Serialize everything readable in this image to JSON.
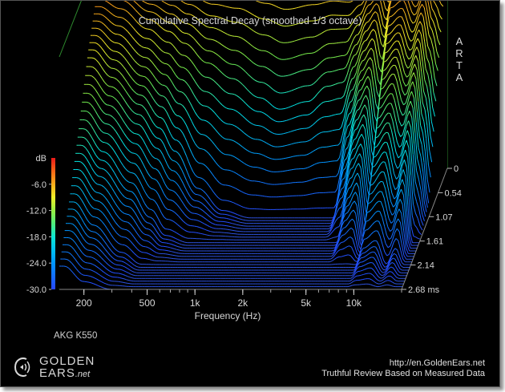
{
  "chart_data": {
    "type": "waterfall",
    "title": "Cumulative Spectral Decay (smoothed 1/3 octave)",
    "xlabel": "Frequency (Hz)",
    "x_ticks": [
      "200",
      "500",
      "1k",
      "2k",
      "5k",
      "10k"
    ],
    "x_tick_values": [
      200,
      500,
      1000,
      2000,
      5000,
      10000
    ],
    "xlim": [
      140,
      20000
    ],
    "x_scale": "log",
    "z_label": "dB",
    "z_ticks": [
      "-6.0",
      "-12.0",
      "-18.0",
      "-24.0",
      "-30.0"
    ],
    "zlim": [
      -30,
      0
    ],
    "time_ticks": [
      "0",
      "0.54",
      "1.07",
      "1.61",
      "2.14",
      "2.68 ms"
    ],
    "time_values": [
      0,
      0.54,
      1.07,
      1.61,
      2.14,
      2.68
    ],
    "slices": 45,
    "series": [
      {
        "time_ms": 0,
        "freq_hz": [
          150,
          200,
          300,
          400,
          500,
          700,
          1000,
          1500,
          2000,
          3000,
          4000,
          5000,
          6000,
          7000,
          8000,
          9000,
          10000,
          12000,
          14000,
          16000,
          18000,
          20000
        ],
        "db": [
          -2.5,
          -2.2,
          -2.0,
          -2.3,
          -2.6,
          -2.8,
          -2.1,
          -2.6,
          -3.0,
          -2.6,
          -2.9,
          -3.4,
          -3.8,
          -2.2,
          -1.5,
          -4.0,
          -0.8,
          -0.5,
          -1.8,
          -0.6,
          -3.0,
          -2.5
        ]
      },
      {
        "time_ms": 0.54,
        "freq_hz": [
          150,
          200,
          300,
          400,
          500,
          700,
          1000,
          1500,
          2000,
          3000,
          4000,
          5000,
          6000,
          7000,
          8000,
          9000,
          10000,
          12000,
          14000,
          16000,
          18000,
          20000
        ],
        "db": [
          -4.0,
          -5.0,
          -7.5,
          -9.0,
          -10.5,
          -13.0,
          -15.0,
          -17.5,
          -19.0,
          -18.0,
          -16.0,
          -15.5,
          -12.0,
          -9.0,
          -7.5,
          -11.0,
          -6.0,
          -5.0,
          -8.0,
          -5.5,
          -10.0,
          -14.0
        ]
      },
      {
        "time_ms": 1.07,
        "freq_hz": [
          150,
          200,
          300,
          400,
          500,
          700,
          1000,
          1500,
          2000,
          3000,
          4000,
          5000,
          6000,
          7000,
          8000,
          9000,
          10000,
          12000,
          14000,
          16000,
          18000,
          20000
        ],
        "db": [
          -9.0,
          -11.5,
          -15.0,
          -18.0,
          -21.0,
          -26.0,
          -29.0,
          -30.0,
          -30.0,
          -30.0,
          -30.0,
          -30.0,
          -22.0,
          -17.0,
          -15.0,
          -22.0,
          -13.0,
          -11.0,
          -15.0,
          -12.0,
          -20.0,
          -28.0
        ]
      },
      {
        "time_ms": 1.61,
        "freq_hz": [
          150,
          200,
          300,
          400,
          500,
          700,
          1000,
          1500,
          2000,
          3000,
          4000,
          5000,
          6000,
          7000,
          8000,
          9000,
          10000,
          12000,
          14000,
          16000,
          18000,
          20000
        ],
        "db": [
          -16.0,
          -19.0,
          -23.0,
          -26.5,
          -29.0,
          -30.0,
          -30.0,
          -30.0,
          -30.0,
          -30.0,
          -30.0,
          -30.0,
          -30.0,
          -25.0,
          -23.0,
          -30.0,
          -21.0,
          -19.0,
          -24.0,
          -20.0,
          -30.0,
          -30.0
        ]
      },
      {
        "time_ms": 2.14,
        "freq_hz": [
          150,
          200,
          300,
          400,
          500,
          700,
          1000,
          1500,
          2000,
          3000,
          4000,
          5000,
          6000,
          7000,
          8000,
          9000,
          10000,
          12000,
          14000,
          16000,
          18000,
          20000
        ],
        "db": [
          -22.0,
          -25.0,
          -28.5,
          -30.0,
          -30.0,
          -30.0,
          -30.0,
          -30.0,
          -30.0,
          -30.0,
          -30.0,
          -30.0,
          -30.0,
          -30.0,
          -30.0,
          -30.0,
          -28.0,
          -27.0,
          -30.0,
          -28.0,
          -30.0,
          -30.0
        ]
      },
      {
        "time_ms": 2.68,
        "freq_hz": [
          150,
          200,
          300,
          400,
          500,
          700,
          1000,
          1500,
          2000,
          3000,
          4000,
          5000,
          6000,
          7000,
          8000,
          9000,
          10000,
          12000,
          14000,
          16000,
          18000,
          20000
        ],
        "db": [
          -27.0,
          -29.0,
          -30.0,
          -30.0,
          -30.0,
          -30.0,
          -30.0,
          -30.0,
          -30.0,
          -30.0,
          -30.0,
          -30.0,
          -30.0,
          -30.0,
          -30.0,
          -30.0,
          -30.0,
          -30.0,
          -30.0,
          -30.0,
          -30.0,
          -30.0
        ]
      }
    ]
  },
  "watermark_brand": "ARTA",
  "model_label": "AKG K550",
  "footer": {
    "brand_line1": "GOLDEN",
    "brand_line2": "EARS",
    "brand_suffix": ".net",
    "url": "http://en.GoldenEars.net",
    "tagline": "Truthful Review Based on Measured Data"
  },
  "colors": {
    "background": "#000000",
    "frame": "#2e8b2e",
    "text": "#d8d8d8",
    "floor": "#2d52e0"
  }
}
